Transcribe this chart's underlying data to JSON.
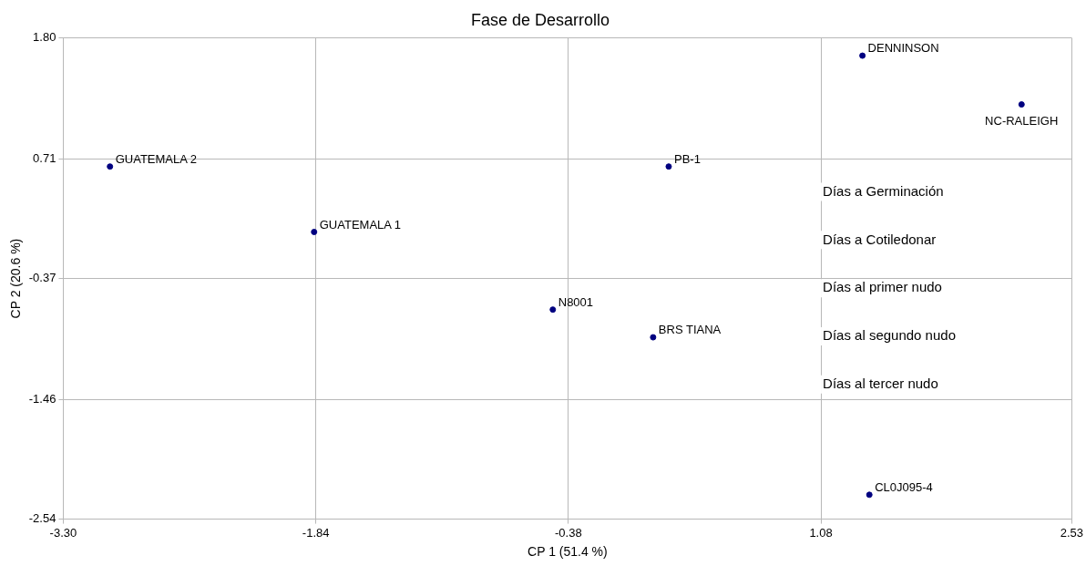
{
  "chart_data": {
    "type": "scatter",
    "title": "Fase de Desarrollo",
    "xlabel": "CP 1 (51.4 %)",
    "ylabel": "CP 2 (20.6 %)",
    "xlim": [
      -3.3,
      2.53
    ],
    "xticks": [
      {
        "value": -3.3,
        "label": "-3.30"
      },
      -1.84,
      -0.38,
      1.08,
      2.53
    ],
    "ylim": [
      -2.54,
      1.8
    ],
    "yticks": [
      -2.54,
      -1.46,
      -0.37,
      0.71,
      {
        "value": 1.8,
        "label": "1.80"
      }
    ],
    "grid": true,
    "legend": false,
    "marker": "circle",
    "series": [
      {
        "name": "GUATEMALA 2",
        "color": "#000080",
        "x": [
          -3.03
        ],
        "values": [
          0.64
        ]
      },
      {
        "name": "GUATEMALA 1",
        "color": "#000080",
        "x": [
          -1.85
        ],
        "values": [
          0.05
        ]
      },
      {
        "name": "N8001",
        "color": "#000080",
        "x": [
          -0.47
        ],
        "values": [
          -0.65
        ]
      },
      {
        "name": "BRS TIANA",
        "color": "#000080",
        "x": [
          0.11
        ],
        "values": [
          -0.9
        ]
      },
      {
        "name": "PB-1",
        "color": "#000080",
        "x": [
          0.2
        ],
        "values": [
          0.64
        ]
      },
      {
        "name": "DENNINSON",
        "color": "#000080",
        "x": [
          1.32
        ],
        "values": [
          1.64
        ]
      },
      {
        "name": "NC-RALEIGH",
        "color": "#000080",
        "x": [
          2.24
        ],
        "values": [
          1.2
        ]
      },
      {
        "name": "CL0J095-4",
        "color": "#000080",
        "x": [
          1.36
        ],
        "values": [
          -2.32
        ]
      }
    ],
    "annotations": [
      "Días a Germinación",
      "Días a Cotiledonar",
      "Días al primer nudo",
      "Días al segundo nudo",
      "Días al tercer nudo"
    ]
  }
}
